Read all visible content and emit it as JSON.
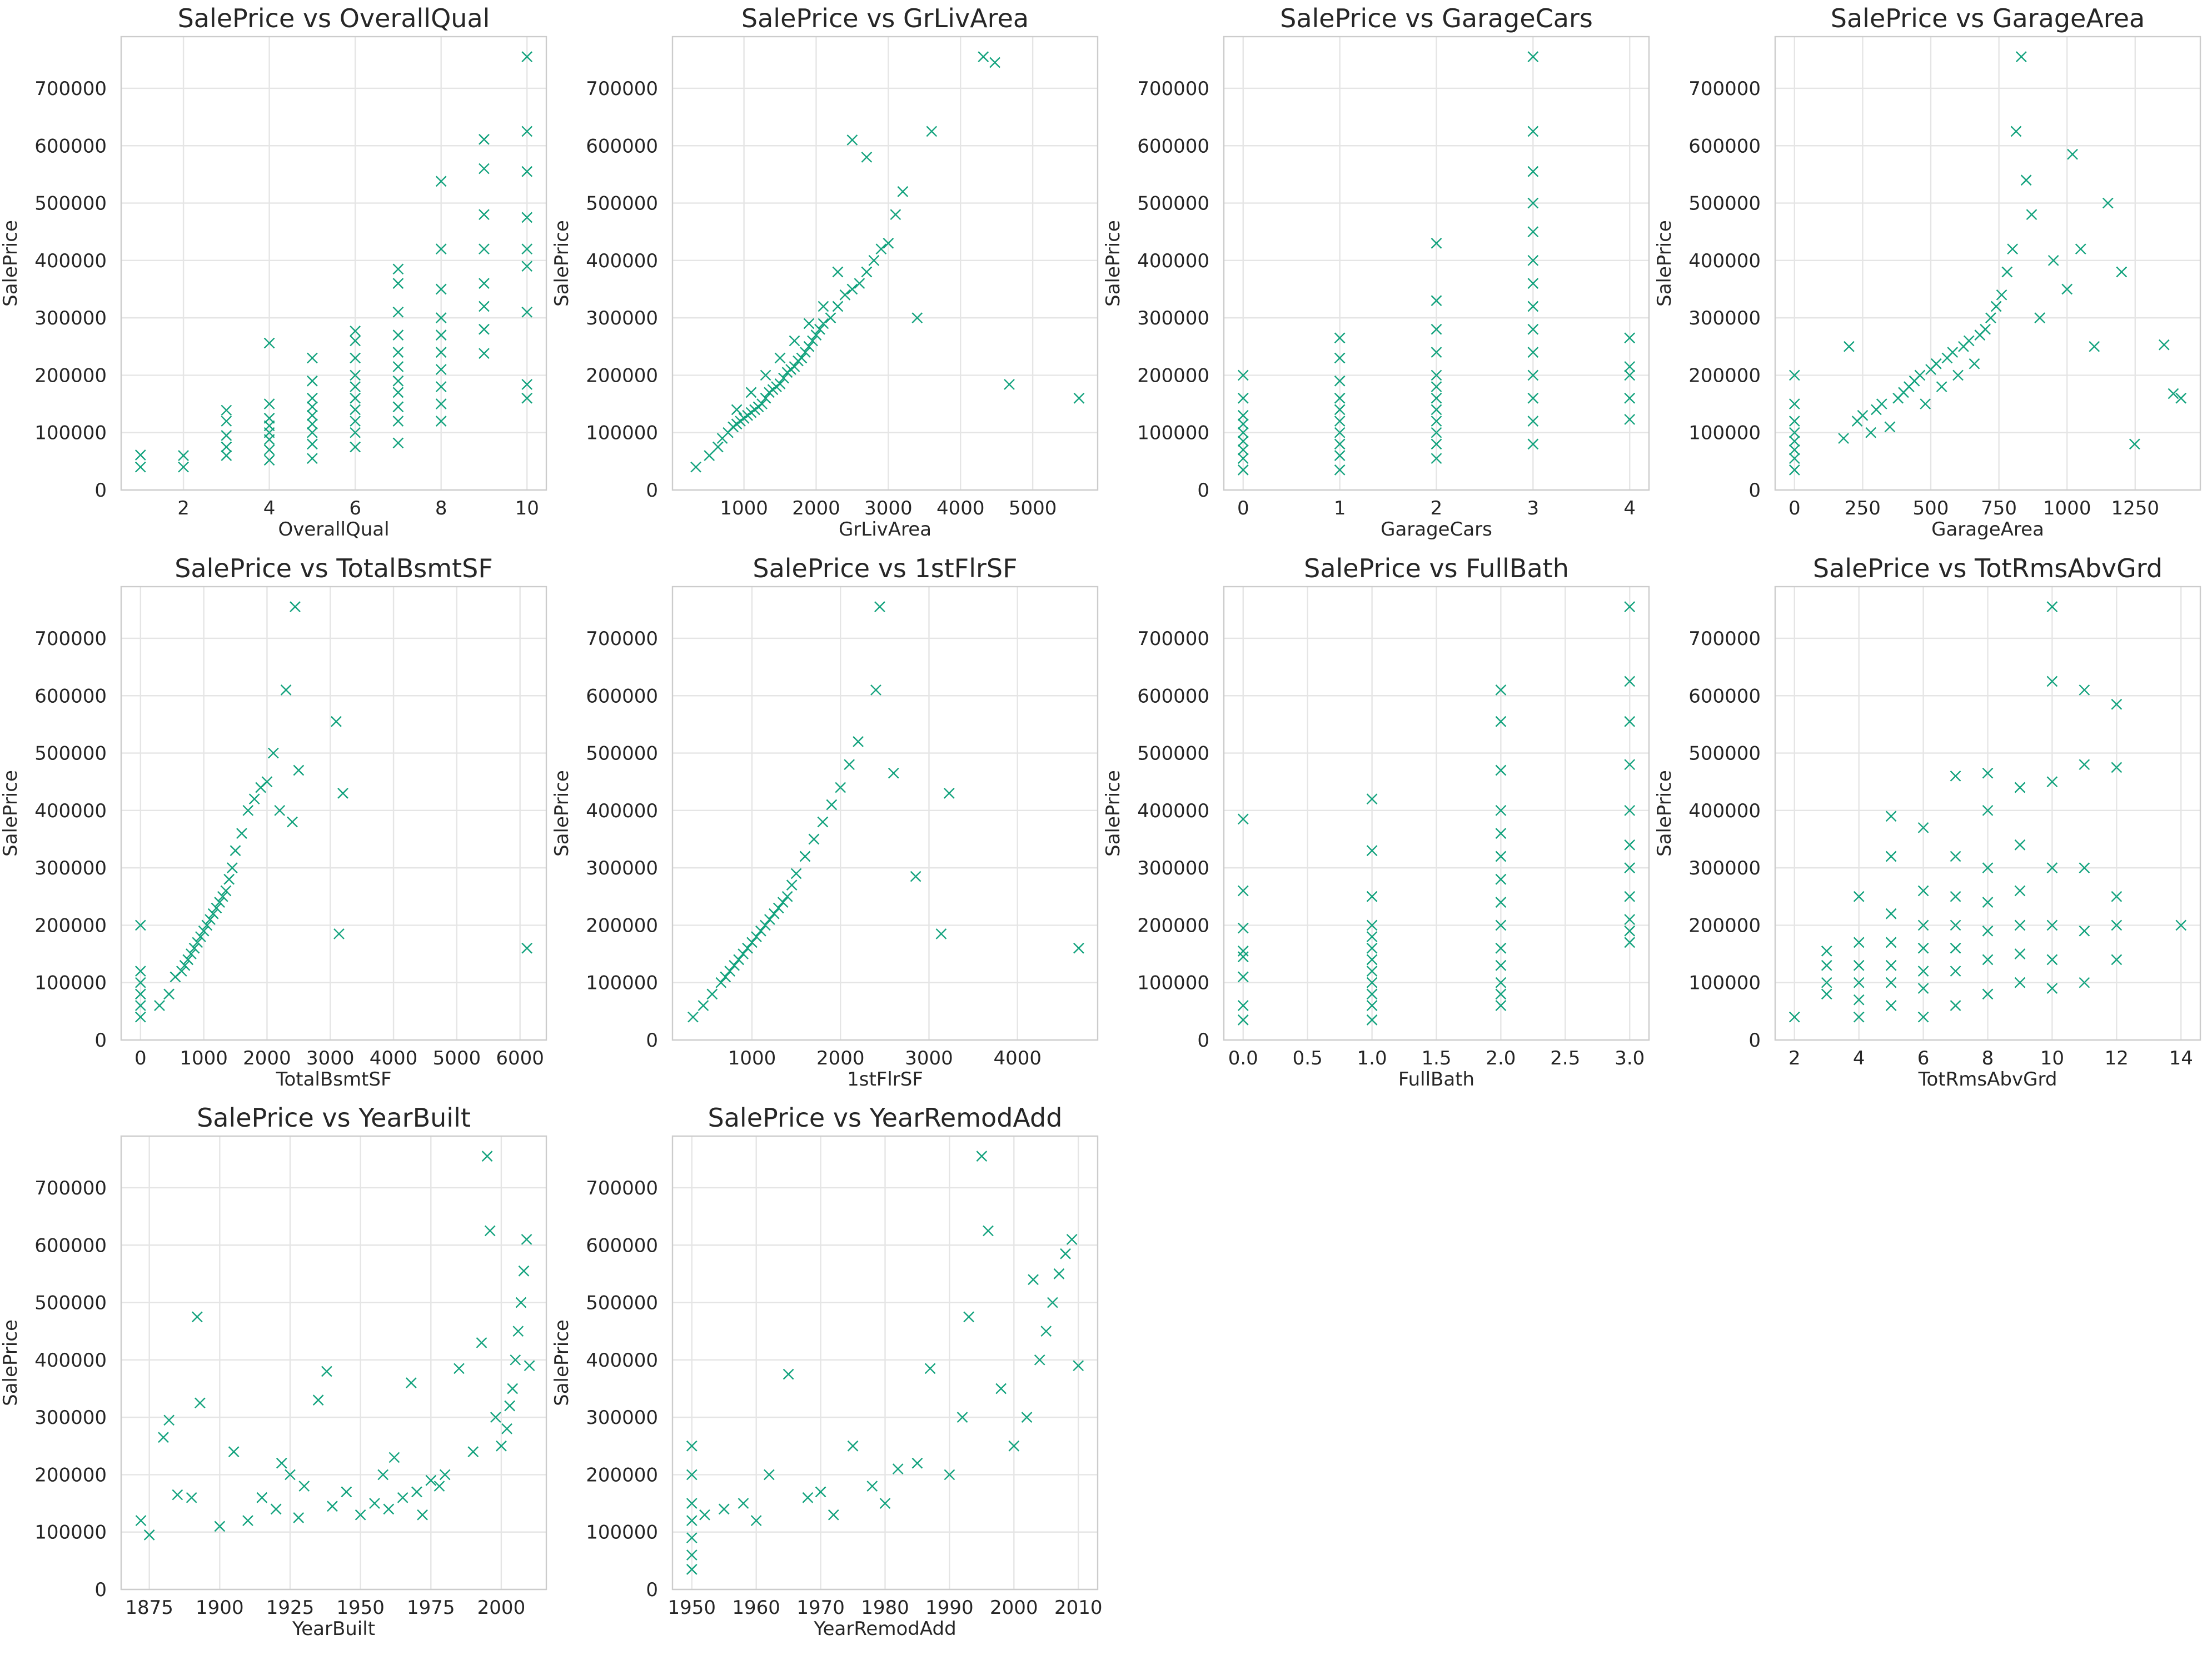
{
  "figure": {
    "marker": "x",
    "color": "#12a27d"
  },
  "chart_data": [
    {
      "type": "scatter",
      "title": "SalePrice vs OverallQual",
      "xlabel": "OverallQual",
      "ylabel": "SalePrice",
      "xlim": [
        0.55,
        10.45
      ],
      "ylim": [
        0,
        790000
      ],
      "xticks": [
        2,
        4,
        6,
        8,
        10
      ],
      "yticks": [
        0,
        100000,
        200000,
        300000,
        400000,
        500000,
        600000,
        700000
      ],
      "x": [
        1,
        1,
        2,
        2,
        3,
        3,
        3,
        3,
        3,
        4,
        4,
        4,
        4,
        4,
        4,
        4,
        4,
        5,
        5,
        5,
        5,
        5,
        5,
        5,
        5,
        5,
        6,
        6,
        6,
        6,
        6,
        6,
        6,
        6,
        6,
        6,
        7,
        7,
        7,
        7,
        7,
        7,
        7,
        7,
        7,
        7,
        7,
        8,
        8,
        8,
        8,
        8,
        8,
        8,
        8,
        8,
        8,
        9,
        9,
        9,
        9,
        9,
        9,
        9,
        9,
        10,
        10,
        10,
        10,
        10,
        10,
        10,
        10,
        10
      ],
      "y": [
        40000,
        61000,
        40000,
        60000,
        60000,
        75000,
        95000,
        120000,
        139000,
        52000,
        70000,
        88000,
        100000,
        112000,
        125000,
        150000,
        256000,
        55000,
        80000,
        100000,
        115000,
        130000,
        145000,
        160000,
        190000,
        230000,
        75000,
        100000,
        120000,
        140000,
        160000,
        180000,
        200000,
        230000,
        260000,
        277000,
        82000,
        120000,
        145000,
        170000,
        190000,
        215000,
        240000,
        270000,
        310000,
        360000,
        385000,
        120000,
        150000,
        180000,
        210000,
        240000,
        270000,
        300000,
        350000,
        420000,
        538000,
        238000,
        280000,
        320000,
        360000,
        420000,
        480000,
        560000,
        611000,
        160000,
        184000,
        310000,
        390000,
        420000,
        475000,
        555000,
        625000,
        755000
      ]
    },
    {
      "type": "scatter",
      "title": "SalePrice vs GrLivArea",
      "xlabel": "GrLivArea",
      "ylabel": "SalePrice",
      "xlim": [
        10,
        5900
      ],
      "ylim": [
        0,
        790000
      ],
      "xticks": [
        1000,
        2000,
        3000,
        4000,
        5000
      ],
      "yticks": [
        0,
        100000,
        200000,
        300000,
        400000,
        500000,
        600000,
        700000
      ],
      "x": [
        334,
        520,
        640,
        700,
        780,
        850,
        900,
        950,
        1000,
        1050,
        1100,
        1150,
        1200,
        1250,
        1300,
        1350,
        1400,
        1450,
        1500,
        1550,
        1600,
        1650,
        1700,
        1750,
        1800,
        1850,
        1900,
        1950,
        2000,
        2050,
        2100,
        2200,
        2300,
        2400,
        2500,
        2600,
        2700,
        2800,
        2900,
        3000,
        3100,
        3200,
        3400,
        3600,
        4316,
        4476,
        4676,
        5642,
        900,
        1100,
        1300,
        1500,
        1700,
        1900,
        2100,
        2300,
        2500,
        2700
      ],
      "y": [
        40000,
        60000,
        75000,
        90000,
        100000,
        110000,
        115000,
        120000,
        125000,
        130000,
        135000,
        140000,
        145000,
        150000,
        160000,
        170000,
        175000,
        180000,
        185000,
        195000,
        205000,
        210000,
        215000,
        225000,
        230000,
        240000,
        250000,
        260000,
        270000,
        280000,
        290000,
        300000,
        320000,
        340000,
        350000,
        360000,
        380000,
        400000,
        420000,
        430000,
        480000,
        520000,
        300000,
        625000,
        755000,
        745000,
        184000,
        160000,
        140000,
        170000,
        200000,
        230000,
        260000,
        290000,
        320000,
        380000,
        610000,
        580000
      ]
    },
    {
      "type": "scatter",
      "title": "SalePrice vs GarageCars",
      "xlabel": "GarageCars",
      "ylabel": "SalePrice",
      "xlim": [
        -0.2,
        4.2
      ],
      "ylim": [
        0,
        790000
      ],
      "xticks": [
        0,
        1,
        2,
        3,
        4
      ],
      "yticks": [
        0,
        100000,
        200000,
        300000,
        400000,
        500000,
        600000,
        700000
      ],
      "x": [
        0,
        0,
        0,
        0,
        0,
        0,
        0,
        0,
        0,
        1,
        1,
        1,
        1,
        1,
        1,
        1,
        1,
        1,
        1,
        2,
        2,
        2,
        2,
        2,
        2,
        2,
        2,
        2,
        2,
        2,
        2,
        3,
        3,
        3,
        3,
        3,
        3,
        3,
        3,
        3,
        3,
        3,
        3,
        3,
        3,
        4,
        4,
        4,
        4,
        4
      ],
      "y": [
        35000,
        55000,
        70000,
        85000,
        100000,
        115000,
        130000,
        160000,
        200000,
        35000,
        60000,
        80000,
        100000,
        120000,
        140000,
        160000,
        190000,
        230000,
        265000,
        55000,
        80000,
        100000,
        120000,
        140000,
        160000,
        180000,
        200000,
        240000,
        280000,
        330000,
        430000,
        80000,
        120000,
        160000,
        200000,
        240000,
        280000,
        320000,
        360000,
        400000,
        450000,
        500000,
        555000,
        625000,
        755000,
        123000,
        160000,
        200000,
        215000,
        265000
      ]
    },
    {
      "type": "scatter",
      "title": "SalePrice vs GarageArea",
      "xlabel": "GarageArea",
      "ylabel": "SalePrice",
      "xlim": [
        -71,
        1489
      ],
      "ylim": [
        0,
        790000
      ],
      "xticks": [
        0,
        250,
        500,
        750,
        1000,
        1250
      ],
      "yticks": [
        0,
        100000,
        200000,
        300000,
        400000,
        500000,
        600000,
        700000
      ],
      "x": [
        0,
        0,
        0,
        0,
        0,
        0,
        0,
        0,
        180,
        200,
        230,
        250,
        280,
        300,
        320,
        350,
        380,
        400,
        420,
        440,
        460,
        480,
        500,
        520,
        540,
        560,
        580,
        600,
        620,
        640,
        660,
        680,
        700,
        720,
        740,
        760,
        780,
        800,
        813,
        832,
        850,
        870,
        900,
        950,
        1000,
        1020,
        1050,
        1100,
        1150,
        1200,
        1248,
        1356,
        1390,
        1418
      ],
      "y": [
        35000,
        55000,
        70000,
        85000,
        100000,
        120000,
        150000,
        200000,
        90000,
        250000,
        120000,
        130000,
        100000,
        140000,
        150000,
        110000,
        160000,
        170000,
        180000,
        190000,
        200000,
        150000,
        210000,
        220000,
        180000,
        230000,
        240000,
        200000,
        250000,
        260000,
        220000,
        270000,
        280000,
        300000,
        320000,
        340000,
        380000,
        420000,
        625000,
        755000,
        540000,
        480000,
        300000,
        400000,
        350000,
        585000,
        420000,
        250000,
        500000,
        380000,
        80000,
        253000,
        168000,
        160000
      ]
    },
    {
      "type": "scatter",
      "title": "SalePrice vs TotalBsmtSF",
      "xlabel": "TotalBsmtSF",
      "ylabel": "SalePrice",
      "xlim": [
        -306,
        6416
      ],
      "ylim": [
        0,
        790000
      ],
      "xticks": [
        0,
        1000,
        2000,
        3000,
        4000,
        5000,
        6000
      ],
      "yticks": [
        0,
        100000,
        200000,
        300000,
        400000,
        500000,
        600000,
        700000
      ],
      "x": [
        0,
        0,
        0,
        0,
        0,
        0,
        300,
        450,
        550,
        650,
        700,
        750,
        800,
        850,
        900,
        950,
        1000,
        1050,
        1100,
        1150,
        1200,
        1250,
        1300,
        1350,
        1400,
        1450,
        1500,
        1600,
        1700,
        1800,
        1900,
        2000,
        2100,
        2200,
        2300,
        2400,
        2444,
        2500,
        3094,
        3138,
        3200,
        6110
      ],
      "y": [
        40000,
        60000,
        80000,
        100000,
        120000,
        200000,
        60000,
        80000,
        110000,
        120000,
        130000,
        140000,
        150000,
        160000,
        170000,
        180000,
        190000,
        200000,
        210000,
        220000,
        230000,
        240000,
        250000,
        260000,
        280000,
        300000,
        330000,
        360000,
        400000,
        420000,
        440000,
        450000,
        500000,
        400000,
        610000,
        380000,
        755000,
        470000,
        555000,
        185000,
        430000,
        160000
      ]
    },
    {
      "type": "scatter",
      "title": "SalePrice vs 1stFlrSF",
      "xlabel": "1stFlrSF",
      "ylabel": "SalePrice",
      "xlim": [
        102,
        4906
      ],
      "ylim": [
        0,
        790000
      ],
      "xticks": [
        1000,
        2000,
        3000,
        4000
      ],
      "yticks": [
        0,
        100000,
        200000,
        300000,
        400000,
        500000,
        600000,
        700000
      ],
      "x": [
        334,
        450,
        550,
        650,
        700,
        750,
        800,
        850,
        900,
        950,
        1000,
        1050,
        1100,
        1150,
        1200,
        1250,
        1300,
        1350,
        1400,
        1450,
        1500,
        1600,
        1700,
        1800,
        1900,
        2000,
        2100,
        2200,
        2400,
        2444,
        2600,
        2850,
        3138,
        3228,
        4692
      ],
      "y": [
        40000,
        60000,
        80000,
        100000,
        110000,
        120000,
        130000,
        140000,
        150000,
        160000,
        170000,
        180000,
        190000,
        200000,
        210000,
        220000,
        230000,
        240000,
        250000,
        270000,
        290000,
        320000,
        350000,
        380000,
        410000,
        440000,
        480000,
        520000,
        610000,
        755000,
        465000,
        285000,
        185000,
        430000,
        160000
      ]
    },
    {
      "type": "scatter",
      "title": "SalePrice vs FullBath",
      "xlabel": "FullBath",
      "ylabel": "SalePrice",
      "xlim": [
        -0.15,
        3.15
      ],
      "ylim": [
        0,
        790000
      ],
      "xticks": [
        0.0,
        0.5,
        1.0,
        1.5,
        2.0,
        2.5,
        3.0
      ],
      "yticks": [
        0,
        100000,
        200000,
        300000,
        400000,
        500000,
        600000,
        700000
      ],
      "x": [
        0,
        0,
        0,
        0,
        0,
        0,
        0,
        0,
        1,
        1,
        1,
        1,
        1,
        1,
        1,
        1,
        1,
        1,
        1,
        1,
        2,
        2,
        2,
        2,
        2,
        2,
        2,
        2,
        2,
        2,
        2,
        2,
        2,
        2,
        3,
        3,
        3,
        3,
        3,
        3,
        3,
        3,
        3,
        3,
        3
      ],
      "y": [
        35000,
        60000,
        110000,
        145000,
        155000,
        195000,
        260000,
        385000,
        35000,
        60000,
        80000,
        100000,
        120000,
        140000,
        160000,
        180000,
        200000,
        250000,
        330000,
        420000,
        60000,
        80000,
        100000,
        130000,
        160000,
        200000,
        240000,
        280000,
        320000,
        360000,
        400000,
        470000,
        555000,
        610000,
        170000,
        190000,
        210000,
        250000,
        300000,
        340000,
        400000,
        480000,
        555000,
        625000,
        755000
      ]
    },
    {
      "type": "scatter",
      "title": "SalePrice vs TotRmsAbvGrd",
      "xlabel": "TotRmsAbvGrd",
      "ylabel": "SalePrice",
      "xlim": [
        1.4,
        14.6
      ],
      "ylim": [
        0,
        790000
      ],
      "xticks": [
        2,
        4,
        6,
        8,
        10,
        12,
        14
      ],
      "yticks": [
        0,
        100000,
        200000,
        300000,
        400000,
        500000,
        600000,
        700000
      ],
      "x": [
        2,
        3,
        3,
        3,
        3,
        4,
        4,
        4,
        4,
        4,
        4,
        5,
        5,
        5,
        5,
        5,
        5,
        5,
        6,
        6,
        6,
        6,
        6,
        6,
        6,
        7,
        7,
        7,
        7,
        7,
        7,
        7,
        8,
        8,
        8,
        8,
        8,
        8,
        8,
        9,
        9,
        9,
        9,
        9,
        9,
        10,
        10,
        10,
        10,
        10,
        10,
        10,
        11,
        11,
        11,
        11,
        11,
        12,
        12,
        12,
        12,
        12,
        14
      ],
      "y": [
        40000,
        80000,
        100000,
        130000,
        155000,
        40000,
        70000,
        100000,
        130000,
        170000,
        250000,
        60000,
        100000,
        130000,
        170000,
        220000,
        320000,
        390000,
        40000,
        90000,
        120000,
        160000,
        200000,
        260000,
        370000,
        60000,
        120000,
        160000,
        200000,
        250000,
        320000,
        460000,
        80000,
        140000,
        190000,
        240000,
        300000,
        400000,
        465000,
        100000,
        150000,
        200000,
        260000,
        340000,
        440000,
        90000,
        140000,
        200000,
        300000,
        450000,
        625000,
        755000,
        100000,
        190000,
        300000,
        480000,
        610000,
        140000,
        200000,
        250000,
        475000,
        585000,
        200000
      ]
    },
    {
      "type": "scatter",
      "title": "SalePrice vs YearBuilt",
      "xlabel": "YearBuilt",
      "ylabel": "SalePrice",
      "xlim": [
        1865,
        2016
      ],
      "ylim": [
        0,
        790000
      ],
      "xticks": [
        1875,
        1900,
        1925,
        1950,
        1975,
        2000
      ],
      "yticks": [
        0,
        100000,
        200000,
        300000,
        400000,
        500000,
        600000,
        700000
      ],
      "x": [
        1872,
        1875,
        1880,
        1882,
        1885,
        1890,
        1892,
        1893,
        1900,
        1905,
        1910,
        1915,
        1920,
        1922,
        1925,
        1928,
        1930,
        1935,
        1938,
        1940,
        1945,
        1950,
        1955,
        1958,
        1960,
        1962,
        1965,
        1968,
        1970,
        1972,
        1975,
        1978,
        1980,
        1985,
        1990,
        1993,
        1995,
        1996,
        1998,
        2000,
        2002,
        2003,
        2004,
        2005,
        2006,
        2007,
        2008,
        2009,
        2010
      ],
      "y": [
        120000,
        95000,
        265000,
        295000,
        165000,
        160000,
        475000,
        325000,
        110000,
        240000,
        120000,
        160000,
        140000,
        220000,
        200000,
        125000,
        180000,
        330000,
        380000,
        145000,
        170000,
        130000,
        150000,
        200000,
        140000,
        230000,
        160000,
        360000,
        170000,
        130000,
        190000,
        180000,
        200000,
        385000,
        240000,
        430000,
        755000,
        625000,
        300000,
        250000,
        280000,
        320000,
        350000,
        400000,
        450000,
        500000,
        555000,
        610000,
        390000
      ]
    },
    {
      "type": "scatter",
      "title": "SalePrice vs YearRemodAdd",
      "xlabel": "YearRemodAdd",
      "ylabel": "SalePrice",
      "xlim": [
        1947,
        2013
      ],
      "ylim": [
        0,
        790000
      ],
      "xticks": [
        1950,
        1960,
        1970,
        1980,
        1990,
        2000,
        2010
      ],
      "yticks": [
        0,
        100000,
        200000,
        300000,
        400000,
        500000,
        600000,
        700000
      ],
      "x": [
        1950,
        1950,
        1950,
        1950,
        1950,
        1950,
        1950,
        1952,
        1955,
        1958,
        1960,
        1962,
        1965,
        1968,
        1970,
        1972,
        1975,
        1978,
        1980,
        1982,
        1985,
        1987,
        1990,
        1992,
        1993,
        1995,
        1996,
        1998,
        2000,
        2002,
        2003,
        2004,
        2005,
        2006,
        2007,
        2008,
        2009,
        2010
      ],
      "y": [
        35000,
        60000,
        90000,
        120000,
        150000,
        200000,
        250000,
        130000,
        140000,
        150000,
        120000,
        200000,
        375000,
        160000,
        170000,
        130000,
        250000,
        180000,
        150000,
        210000,
        220000,
        385000,
        200000,
        300000,
        475000,
        755000,
        625000,
        350000,
        250000,
        300000,
        540000,
        400000,
        450000,
        500000,
        550000,
        585000,
        610000,
        390000
      ]
    }
  ]
}
